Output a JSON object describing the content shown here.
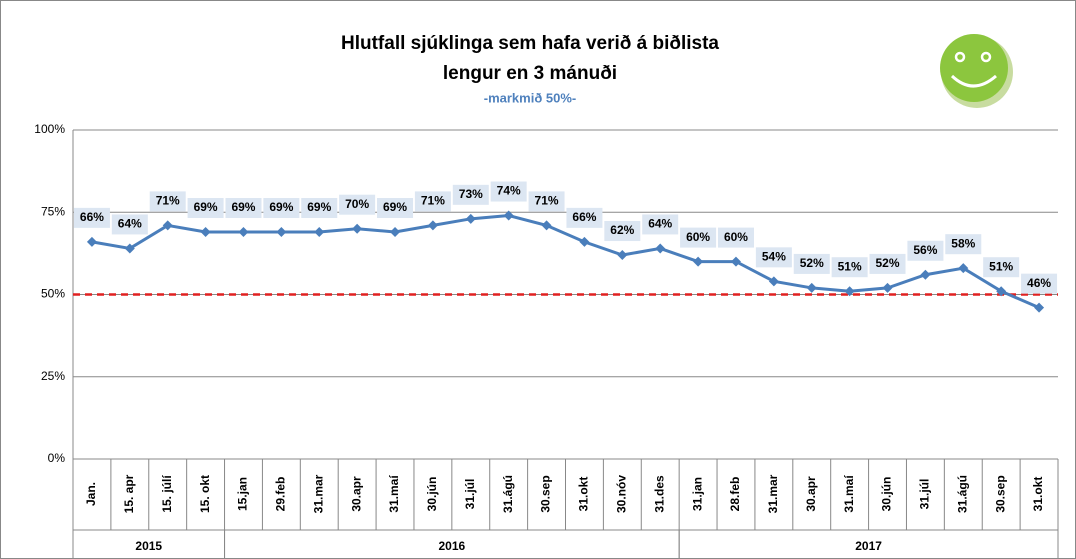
{
  "chart_data": {
    "type": "line",
    "title": [
      "Hlutfall sjúklinga sem hafa verið á biðlista",
      "lengur en 3 mánuði"
    ],
    "subtitle": "-markmið 50%-",
    "categories": [
      "Jan.",
      "15. apr",
      "15. júlí",
      "15. okt",
      "15.jan",
      "29.feb",
      "31.mar",
      "30.apr",
      "31.maí",
      "30.jún",
      "31.júl",
      "31.ágú",
      "30.sep",
      "31.okt",
      "30.nóv",
      "31.des",
      "31.jan",
      "28.feb",
      "31.mar",
      "30.apr",
      "31.maí",
      "30.jún",
      "31.júl",
      "31.ágú",
      "30.sep",
      "31.okt"
    ],
    "year_groups": [
      {
        "name": "2015",
        "categories": 4
      },
      {
        "name": "2016",
        "categories": 12
      },
      {
        "name": "2017",
        "categories": 10
      }
    ],
    "series": [
      {
        "name": "Hlutfall",
        "color": "#4a7ebb",
        "values": [
          66,
          64,
          71,
          69,
          69,
          69,
          69,
          70,
          69,
          71,
          73,
          74,
          71,
          66,
          62,
          64,
          60,
          60,
          54,
          52,
          51,
          52,
          56,
          58,
          51,
          46
        ],
        "value_labels": [
          "66%",
          "64%",
          "71%",
          "69%",
          "69%",
          "69%",
          "69%",
          "70%",
          "69%",
          "71%",
          "73%",
          "74%",
          "71%",
          "66%",
          "62%",
          "64%",
          "60%",
          "60%",
          "54%",
          "52%",
          "51%",
          "52%",
          "56%",
          "58%",
          "51%",
          "46%"
        ]
      }
    ],
    "target": {
      "value": 50,
      "color": "#e02020"
    },
    "ylim": [
      0,
      100
    ],
    "yticks": [
      {
        "value": 0,
        "label": "0%"
      },
      {
        "value": 25,
        "label": "25%"
      },
      {
        "value": 50,
        "label": "50%"
      },
      {
        "value": 75,
        "label": "75%"
      },
      {
        "value": 100,
        "label": "100%"
      }
    ],
    "grid": true
  }
}
